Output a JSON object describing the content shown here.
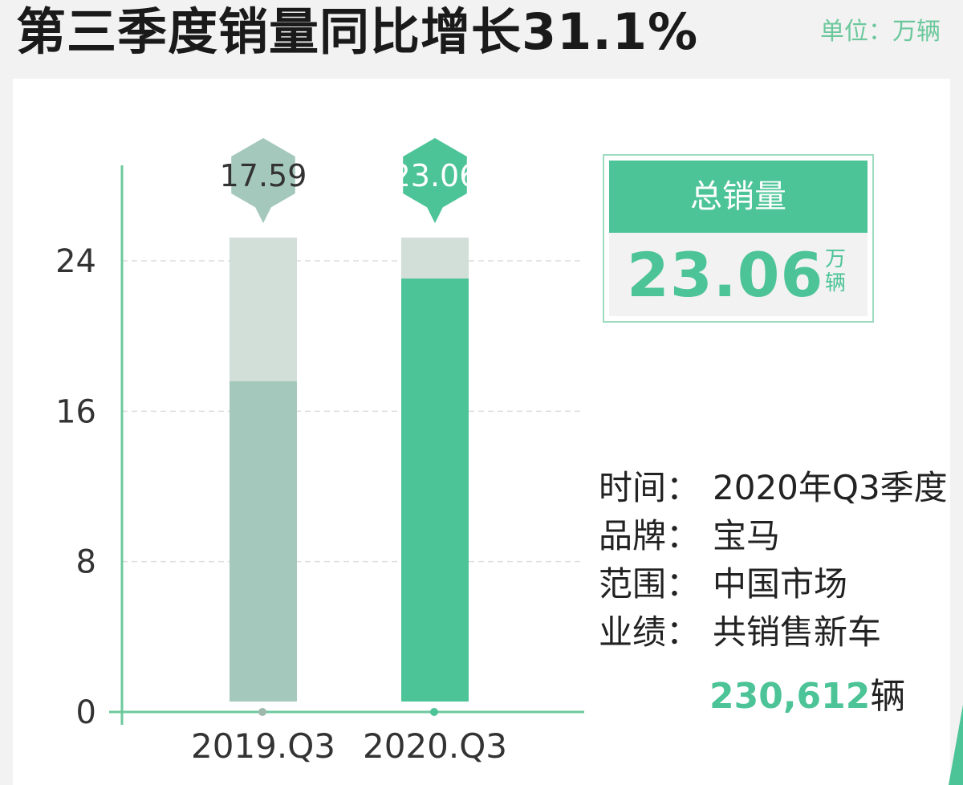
{
  "header": {
    "title": "第三季度销量同比增长31.1%",
    "unit_note": "单位：万辆"
  },
  "total": {
    "label": "总销量",
    "value": "23.06",
    "unit_line1": "万",
    "unit_line2": "辆"
  },
  "info": {
    "rows": [
      {
        "key": "时间：",
        "value": "2020年Q3季度"
      },
      {
        "key": "品牌：",
        "value": "宝马"
      },
      {
        "key": "范围：",
        "value": "中国市场"
      },
      {
        "key": "业绩：",
        "value": "共销售新车"
      }
    ],
    "sales_number": "230,612",
    "sales_unit": "辆"
  },
  "colors": {
    "accent": "#4cc497",
    "muted_bar": "#a5c8bc",
    "bar_track": "#d2ded8",
    "axis": "#6cc89c"
  },
  "chart_data": {
    "type": "bar",
    "categories": [
      "2019.Q3",
      "2020.Q3"
    ],
    "values": [
      17.59,
      23.06
    ],
    "data_labels": [
      "17.59",
      "23.06"
    ],
    "title": "",
    "xlabel": "",
    "ylabel": "",
    "yticks": [
      0,
      8,
      16,
      24
    ],
    "ylim": [
      0,
      24
    ],
    "grid": true,
    "legend": "none"
  }
}
